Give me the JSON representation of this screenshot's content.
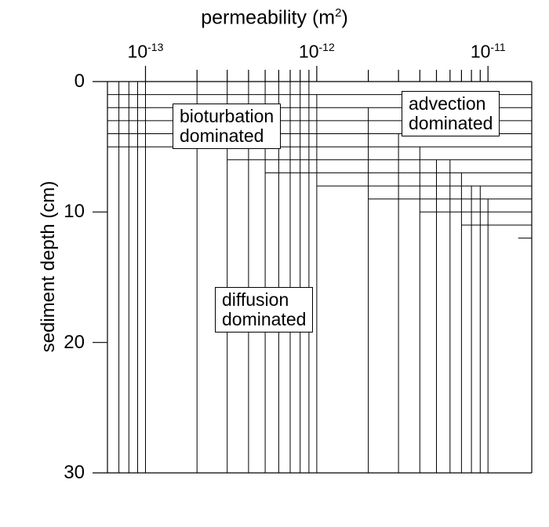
{
  "chart_data": {
    "type": "heatmap",
    "title": "",
    "xlabel": "permeability (m²)",
    "ylabel": "sediment depth (cm)",
    "x_scale": "log",
    "x_axis_position": "top",
    "xlim": [
      6e-14,
      1.8e-11
    ],
    "ylim": [
      0,
      30
    ],
    "y_inverted": true,
    "grid": true,
    "x_ticks": [
      {
        "value": 1e-13,
        "label_base": "10",
        "label_exp": "-13"
      },
      {
        "value": 1e-12,
        "label_base": "10",
        "label_exp": "-12"
      },
      {
        "value": 1e-11,
        "label_base": "10",
        "label_exp": "-11"
      }
    ],
    "y_ticks": [
      0,
      10,
      20,
      30
    ],
    "regions": [
      {
        "label": "bioturbation dominated",
        "lines": [
          "bioturbation",
          "dominated"
        ]
      },
      {
        "label": "advection dominated",
        "lines": [
          "advection",
          "dominated"
        ]
      },
      {
        "label": "diffusion dominated",
        "lines": [
          "diffusion",
          "dominated"
        ]
      }
    ],
    "zone_boundary": [
      {
        "permeability": 6e-14,
        "depth": 5
      },
      {
        "permeability": 1e-13,
        "depth": 5
      },
      {
        "permeability": 2e-13,
        "depth": 5
      },
      {
        "permeability": 3e-13,
        "depth": 6
      },
      {
        "permeability": 5e-13,
        "depth": 7
      },
      {
        "permeability": 8e-13,
        "depth": 7.5
      },
      {
        "permeability": 1e-12,
        "depth": 8
      },
      {
        "permeability": 2e-12,
        "depth": 9
      },
      {
        "permeability": 3e-12,
        "depth": 9.5
      },
      {
        "permeability": 4e-12,
        "depth": 10
      },
      {
        "permeability": 7e-12,
        "depth": 11
      },
      {
        "permeability": 1.2e-11,
        "depth": 11.5
      },
      {
        "permeability": 1.5e-11,
        "depth": 12
      }
    ],
    "advection_onset": [
      {
        "permeability": 1e-12,
        "depth": 1
      },
      {
        "permeability": 1.5e-12,
        "depth": 2
      },
      {
        "permeability": 2.2e-12,
        "depth": 3
      },
      {
        "permeability": 3e-12,
        "depth": 4
      },
      {
        "permeability": 4e-12,
        "depth": 5
      },
      {
        "permeability": 5e-12,
        "depth": 6
      },
      {
        "permeability": 6.5e-12,
        "depth": 7
      },
      {
        "permeability": 8e-12,
        "depth": 8
      },
      {
        "permeability": 9.5e-12,
        "depth": 9
      },
      {
        "permeability": 1.2e-11,
        "depth": 10
      },
      {
        "permeability": 1.45e-11,
        "depth": 11
      }
    ]
  }
}
